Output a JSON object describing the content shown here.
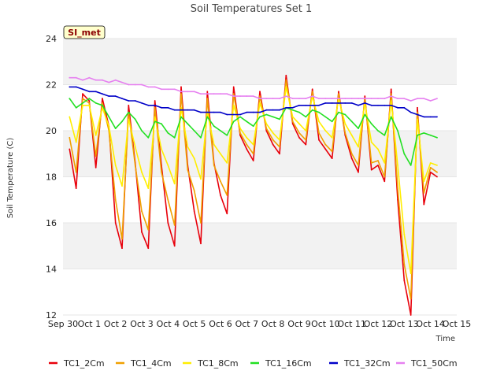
{
  "chart_data": {
    "type": "line",
    "title": "Soil Temperatures Set 1",
    "xlabel": "Time",
    "ylabel": "Soil Temperature (C)",
    "station_label": "SI_met",
    "xlim": [
      "2023-09-30",
      "2023-10-15"
    ],
    "ylim": [
      12,
      24
    ],
    "yticks": [
      12,
      14,
      16,
      18,
      20,
      22,
      24
    ],
    "xtick_labels": [
      "Sep 30",
      "Oct 1",
      "Oct 2",
      "Oct 3",
      "Oct 4",
      "Oct 5",
      "Oct 6",
      "Oct 7",
      "Oct 8",
      "Oct 9",
      "Oct 10",
      "Oct 11",
      "Oct 12",
      "Oct 13",
      "Oct 14",
      "Oct 15"
    ],
    "band_fill": "#f2f2f2",
    "legend_position": "bottom",
    "x": [
      "2023-09-30 06:00",
      "2023-09-30 12:00",
      "2023-09-30 18:00",
      "2023-10-01 00:00",
      "2023-10-01 06:00",
      "2023-10-01 12:00",
      "2023-10-01 18:00",
      "2023-10-02 00:00",
      "2023-10-02 06:00",
      "2023-10-02 12:00",
      "2023-10-02 18:00",
      "2023-10-03 00:00",
      "2023-10-03 06:00",
      "2023-10-03 12:00",
      "2023-10-03 18:00",
      "2023-10-04 00:00",
      "2023-10-04 06:00",
      "2023-10-04 12:00",
      "2023-10-04 18:00",
      "2023-10-05 00:00",
      "2023-10-05 06:00",
      "2023-10-05 12:00",
      "2023-10-05 18:00",
      "2023-10-06 00:00",
      "2023-10-06 06:00",
      "2023-10-06 12:00",
      "2023-10-06 18:00",
      "2023-10-07 00:00",
      "2023-10-07 06:00",
      "2023-10-07 12:00",
      "2023-10-07 18:00",
      "2023-10-08 00:00",
      "2023-10-08 06:00",
      "2023-10-08 12:00",
      "2023-10-08 18:00",
      "2023-10-09 00:00",
      "2023-10-09 06:00",
      "2023-10-09 12:00",
      "2023-10-09 18:00",
      "2023-10-10 00:00",
      "2023-10-10 06:00",
      "2023-10-10 12:00",
      "2023-10-10 18:00",
      "2023-10-11 00:00",
      "2023-10-11 06:00",
      "2023-10-11 12:00",
      "2023-10-11 18:00",
      "2023-10-12 00:00",
      "2023-10-12 06:00",
      "2023-10-12 12:00",
      "2023-10-12 18:00",
      "2023-10-13 00:00",
      "2023-10-13 06:00",
      "2023-10-13 12:00",
      "2023-10-13 18:00",
      "2023-10-14 00:00",
      "2023-10-14 06:00"
    ],
    "series": [
      {
        "name": "TC1_2Cm",
        "color": "#e8000b",
        "values": [
          19.2,
          17.5,
          21.6,
          21.3,
          18.4,
          21.4,
          20.2,
          16.0,
          14.9,
          21.1,
          18.6,
          15.6,
          14.9,
          21.3,
          18.5,
          16.0,
          15.0,
          21.9,
          18.5,
          16.5,
          15.1,
          21.7,
          18.6,
          17.2,
          16.4,
          21.9,
          19.8,
          19.2,
          18.7,
          21.7,
          20.0,
          19.4,
          19.0,
          22.4,
          20.3,
          19.7,
          19.4,
          21.8,
          19.6,
          19.2,
          18.8,
          21.7,
          19.8,
          18.8,
          18.2,
          21.5,
          18.3,
          18.5,
          17.8,
          21.8,
          17.0,
          13.5,
          12.0,
          21.0,
          16.8,
          18.2,
          18.0
        ]
      },
      {
        "name": "TC1_4Cm",
        "color": "#f0a000",
        "values": [
          19.7,
          18.2,
          21.4,
          21.2,
          18.9,
          21.2,
          20.0,
          17.0,
          15.3,
          20.8,
          18.5,
          16.5,
          15.7,
          21.0,
          18.2,
          17.0,
          15.9,
          21.6,
          18.3,
          17.4,
          16.0,
          21.4,
          18.5,
          17.8,
          17.2,
          21.6,
          19.9,
          19.4,
          19.0,
          21.5,
          20.1,
          19.6,
          19.3,
          22.2,
          20.4,
          19.9,
          19.6,
          21.7,
          19.9,
          19.4,
          19.1,
          21.6,
          19.9,
          19.0,
          18.5,
          21.4,
          18.6,
          18.7,
          18.0,
          21.6,
          17.5,
          14.2,
          12.7,
          20.8,
          17.3,
          18.4,
          18.2
        ]
      },
      {
        "name": "TC1_8Cm",
        "color": "#ffee00",
        "values": [
          20.6,
          19.5,
          21.1,
          21.1,
          19.8,
          21.0,
          20.2,
          18.5,
          17.6,
          20.5,
          19.3,
          18.2,
          17.5,
          20.6,
          19.2,
          18.5,
          17.7,
          21.0,
          19.3,
          18.8,
          17.9,
          20.8,
          19.4,
          19.0,
          18.6,
          21.1,
          20.1,
          19.7,
          19.4,
          21.2,
          20.3,
          19.9,
          19.6,
          21.9,
          20.6,
          20.3,
          20.0,
          21.5,
          20.4,
          20.0,
          19.7,
          21.4,
          20.3,
          19.8,
          19.3,
          21.2,
          19.5,
          19.2,
          18.6,
          21.3,
          18.5,
          15.5,
          13.8,
          20.5,
          17.8,
          18.6,
          18.5
        ]
      },
      {
        "name": "TC1_16Cm",
        "color": "#22e022",
        "values": [
          21.4,
          21.0,
          21.2,
          21.4,
          21.2,
          21.1,
          20.6,
          20.1,
          20.4,
          20.8,
          20.5,
          20.0,
          19.7,
          20.4,
          20.3,
          19.9,
          19.7,
          20.6,
          20.3,
          20.0,
          19.7,
          20.6,
          20.2,
          20.0,
          19.8,
          20.4,
          20.6,
          20.4,
          20.2,
          20.6,
          20.7,
          20.6,
          20.5,
          21.0,
          20.9,
          20.8,
          20.6,
          20.9,
          20.8,
          20.6,
          20.4,
          20.8,
          20.7,
          20.4,
          20.1,
          20.7,
          20.3,
          20.0,
          19.8,
          20.6,
          20.0,
          19.0,
          18.5,
          19.8,
          19.9,
          19.8,
          19.7
        ]
      },
      {
        "name": "TC1_32Cm",
        "color": "#0000c8",
        "values": [
          21.9,
          21.9,
          21.8,
          21.7,
          21.7,
          21.6,
          21.5,
          21.5,
          21.4,
          21.3,
          21.3,
          21.2,
          21.1,
          21.1,
          21.0,
          21.0,
          20.9,
          20.9,
          20.9,
          20.9,
          20.8,
          20.8,
          20.8,
          20.8,
          20.7,
          20.7,
          20.7,
          20.8,
          20.8,
          20.8,
          20.9,
          20.9,
          20.9,
          21.0,
          21.0,
          21.1,
          21.1,
          21.1,
          21.1,
          21.2,
          21.2,
          21.2,
          21.2,
          21.2,
          21.1,
          21.2,
          21.1,
          21.1,
          21.1,
          21.1,
          21.0,
          21.0,
          20.8,
          20.7,
          20.6,
          20.6,
          20.6
        ]
      },
      {
        "name": "TC1_50Cm",
        "color": "#e680f0",
        "values": [
          22.3,
          22.3,
          22.2,
          22.3,
          22.2,
          22.2,
          22.1,
          22.2,
          22.1,
          22.0,
          22.0,
          22.0,
          21.9,
          21.9,
          21.8,
          21.8,
          21.8,
          21.7,
          21.7,
          21.7,
          21.6,
          21.6,
          21.6,
          21.6,
          21.6,
          21.5,
          21.5,
          21.5,
          21.5,
          21.4,
          21.4,
          21.4,
          21.4,
          21.5,
          21.4,
          21.4,
          21.4,
          21.5,
          21.4,
          21.4,
          21.4,
          21.4,
          21.4,
          21.4,
          21.4,
          21.4,
          21.4,
          21.4,
          21.4,
          21.5,
          21.4,
          21.4,
          21.3,
          21.4,
          21.4,
          21.3,
          21.4
        ]
      }
    ]
  }
}
